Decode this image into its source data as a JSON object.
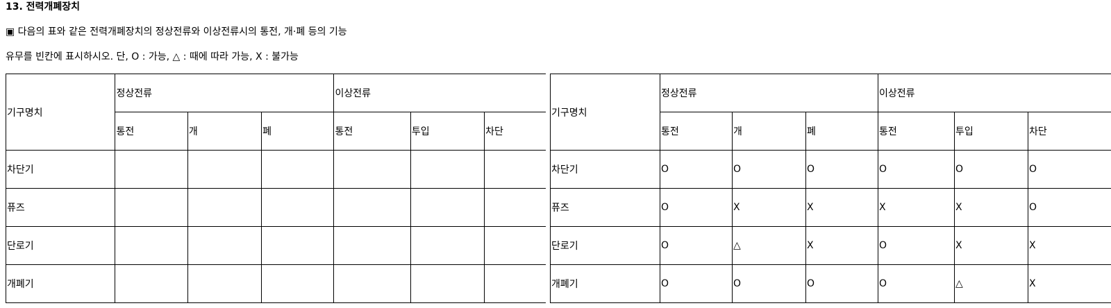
{
  "title": "13. 전력개폐장치",
  "instructions": [
    "▣ 다음의 표와 같은 전력개폐장치의 정상전류와 이상전류시의 통전, 개·폐 등의 기능",
    "유무를 빈칸에 표시하시오. 단, O : 가능, △ : 때에 따라 가능, X : 불가능"
  ],
  "table": {
    "header_device": "기구명치",
    "group_normal": "정상전류",
    "group_abnormal": "이상전류",
    "columns": [
      "통전",
      "개",
      "폐",
      "통전",
      "투입",
      "차단"
    ]
  },
  "devices": [
    "차단기",
    "퓨즈",
    "단로기",
    "개폐기"
  ],
  "answers": [
    [
      "O",
      "O",
      "O",
      "O",
      "O",
      "O"
    ],
    [
      "O",
      "X",
      "X",
      "X",
      "X",
      "O"
    ],
    [
      "O",
      "△",
      "X",
      "O",
      "X",
      "X"
    ],
    [
      "O",
      "O",
      "O",
      "O",
      "△",
      "X"
    ]
  ]
}
